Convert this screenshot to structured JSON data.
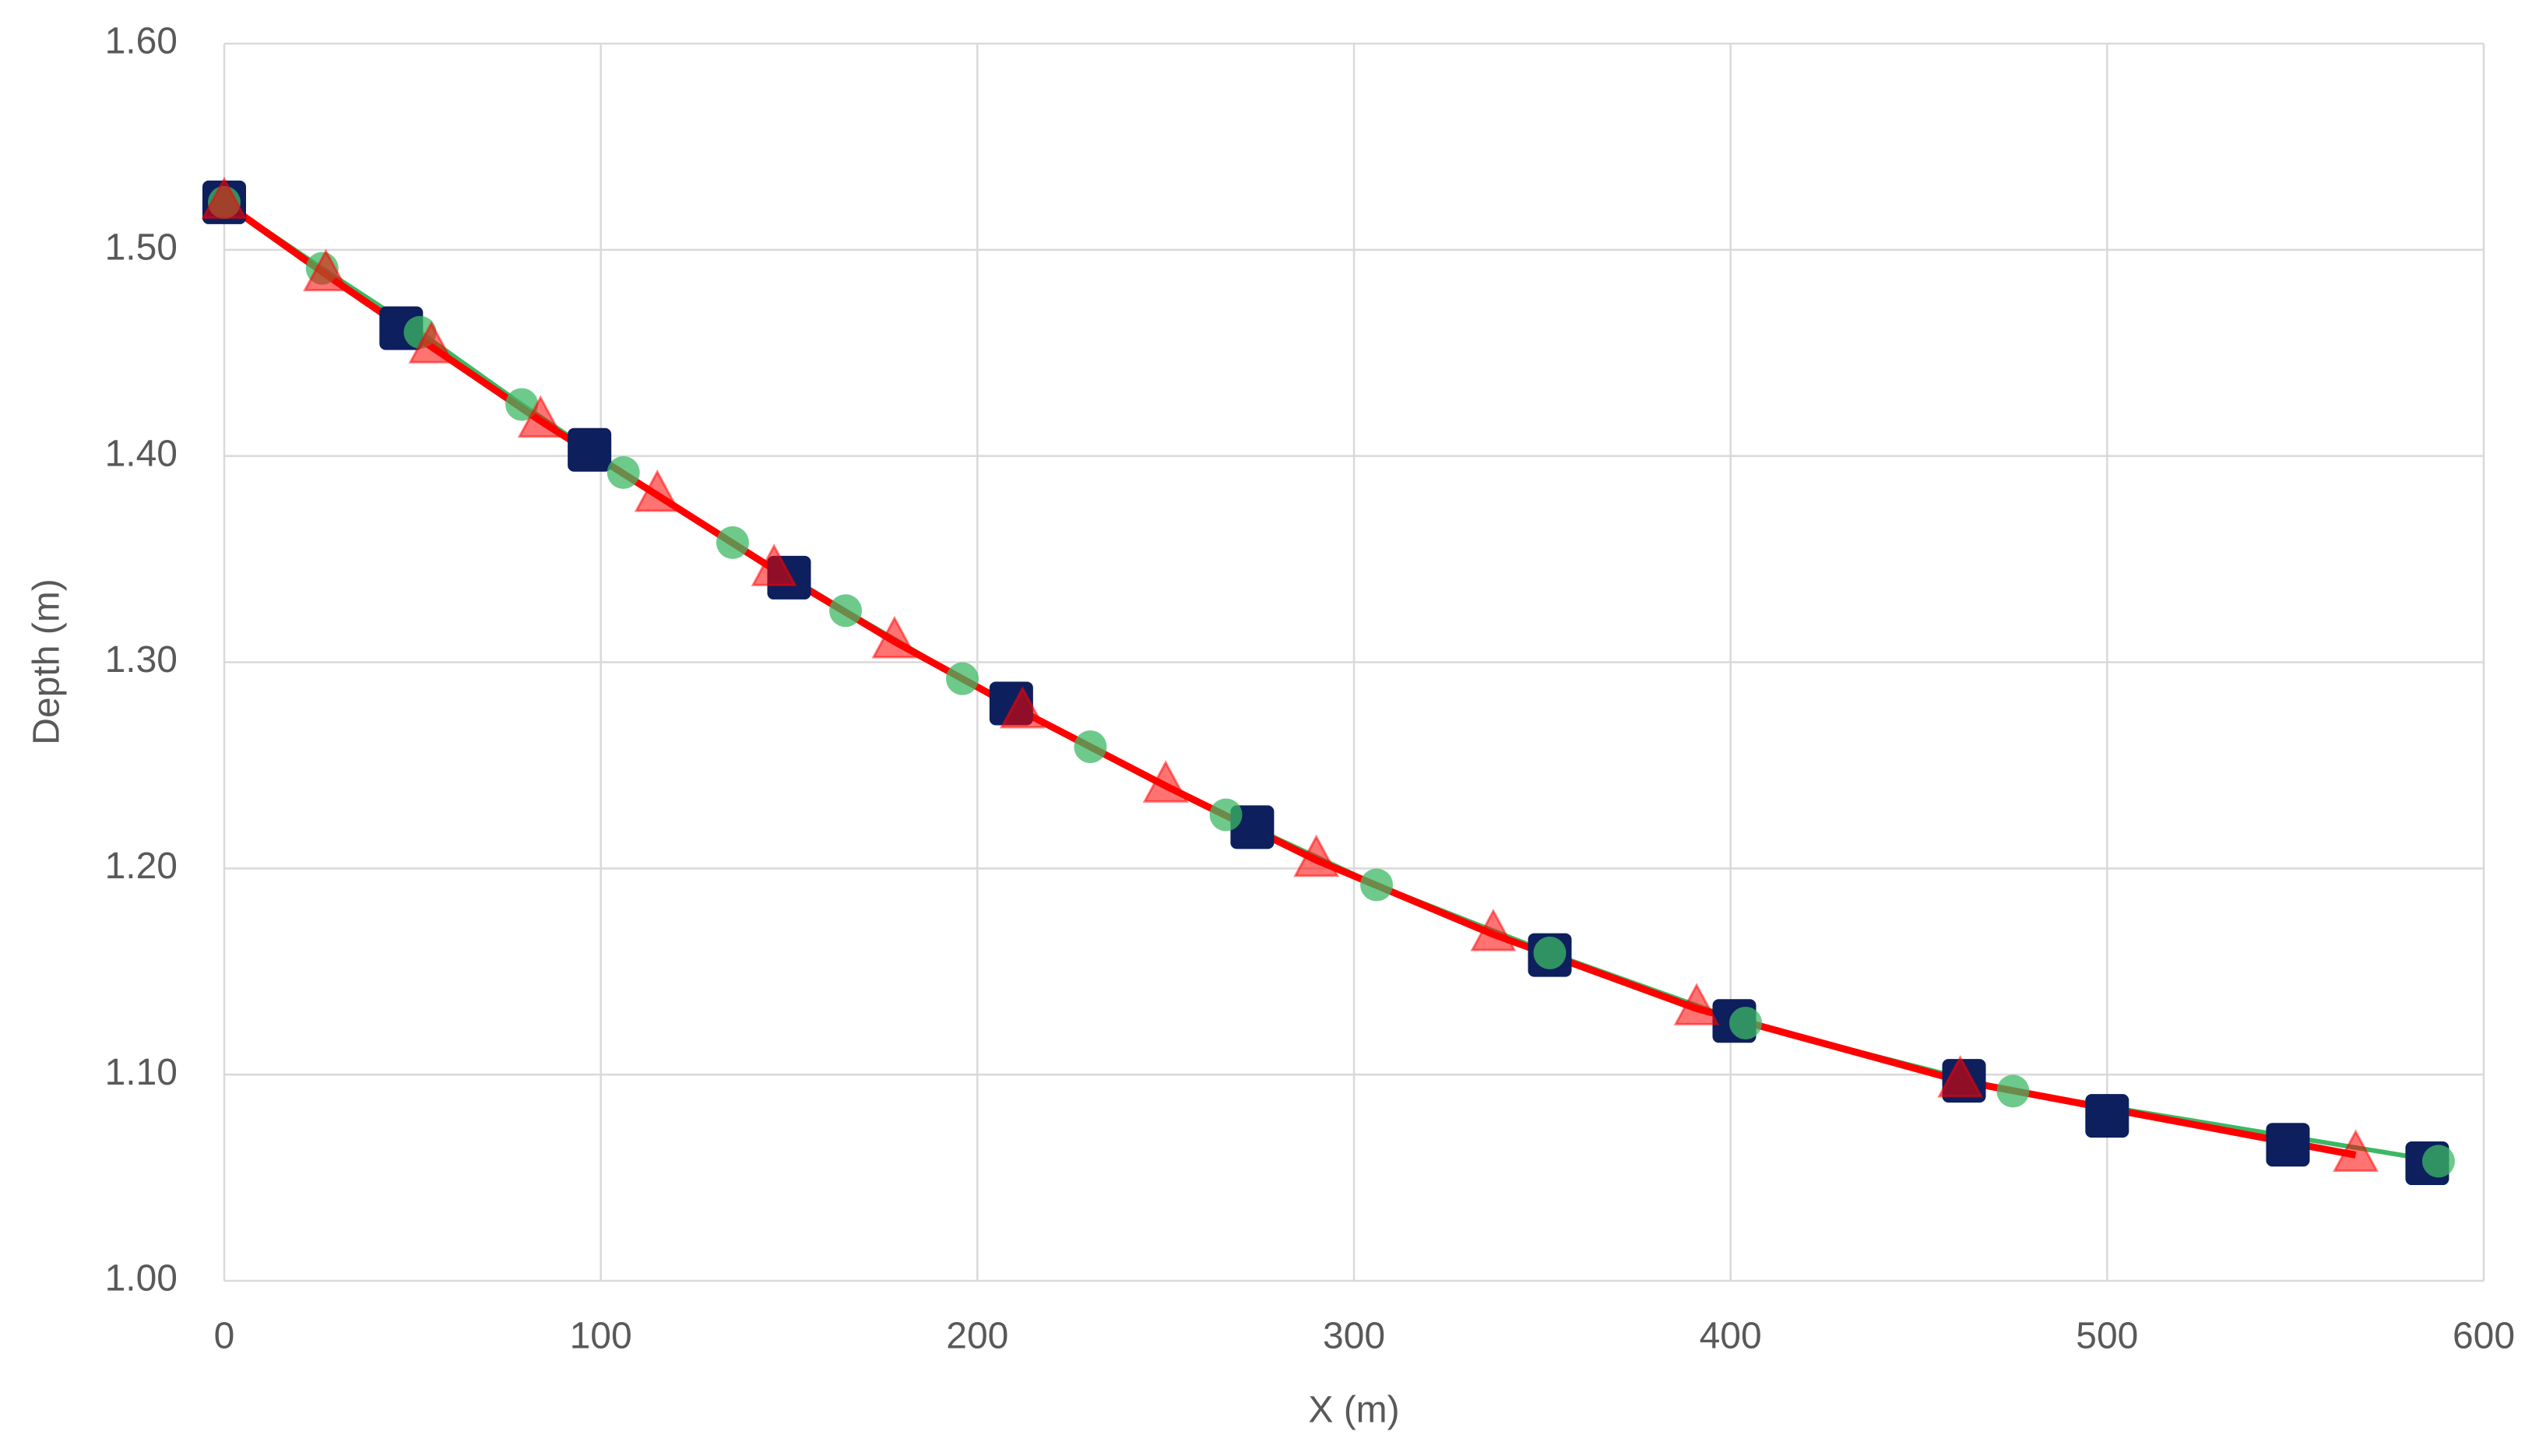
{
  "chart_data": {
    "type": "scatter",
    "x_label": "X (m)",
    "y_label": "Depth (m)",
    "xlim": [
      0,
      600
    ],
    "xticks": [
      0,
      100,
      200,
      300,
      400,
      500,
      600
    ],
    "ylim": [
      1,
      1.6
    ],
    "yticks": [
      {
        "value": 1,
        "label": "1.00"
      },
      {
        "value": 1.1,
        "label": "1.10"
      },
      {
        "value": 1.2,
        "label": "1.20"
      },
      {
        "value": 1.3,
        "label": "1.30"
      },
      {
        "value": 1.4,
        "label": "1.40"
      },
      {
        "value": 1.5,
        "label": "1.50"
      },
      {
        "value": 1.6,
        "label": "1.60"
      }
    ],
    "grid": true,
    "series": [
      {
        "color": "#0d1f5c",
        "marker": "square",
        "line": false,
        "x": [
          0,
          47,
          97,
          150,
          209,
          273,
          352,
          401,
          462,
          500,
          548,
          585
        ],
        "values": [
          1.523,
          1.462,
          1.403,
          1.341,
          1.28,
          1.22,
          1.158,
          1.126,
          1.097,
          1.08,
          1.066,
          1.057
        ]
      },
      {
        "color": "#3cb864",
        "marker": "circle",
        "line": true,
        "x": [
          0,
          26,
          52,
          79,
          106,
          135,
          165,
          196,
          230,
          266,
          306,
          352,
          404,
          475,
          588
        ],
        "values": [
          1.523,
          1.491,
          1.46,
          1.425,
          1.392,
          1.358,
          1.325,
          1.292,
          1.259,
          1.226,
          1.192,
          1.159,
          1.125,
          1.092,
          1.058
        ]
      },
      {
        "color": "#ff0000",
        "marker": "triangle",
        "line": true,
        "x": [
          0,
          27,
          55,
          84,
          115,
          146,
          178,
          212,
          250,
          290,
          337,
          391,
          461,
          566
        ],
        "values": [
          1.523,
          1.488,
          1.453,
          1.417,
          1.381,
          1.345,
          1.31,
          1.276,
          1.24,
          1.204,
          1.168,
          1.132,
          1.097,
          1.061
        ]
      }
    ]
  }
}
